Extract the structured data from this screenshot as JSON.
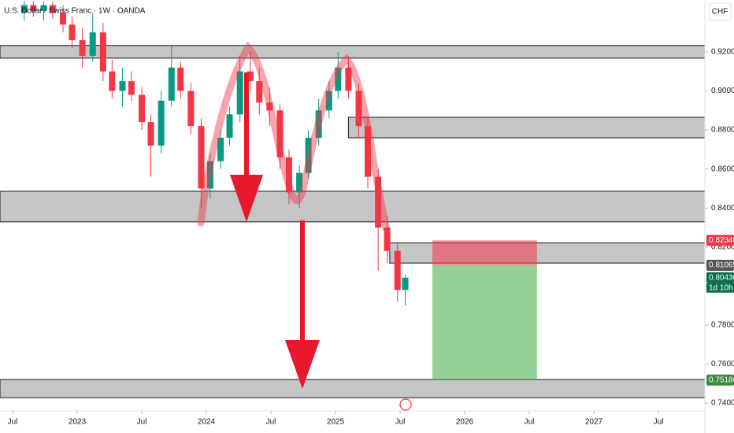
{
  "chart_data": {
    "type": "candlestick",
    "title": "U.S. Dollar / Swiss Franc · 1W · OANDA",
    "currency": "CHF",
    "up_color": "#089981",
    "down_color": "#f23645",
    "x": [
      2022.59,
      2022.66,
      2022.74,
      2022.81,
      2022.89,
      2022.96,
      2023.04,
      2023.12,
      2023.2,
      2023.27,
      2023.35,
      2023.42,
      2023.5,
      2023.57,
      2023.65,
      2023.73,
      2023.8,
      2023.88,
      2023.96,
      2024.03,
      2024.11,
      2024.18,
      2024.26,
      2024.34,
      2024.41,
      2024.49,
      2024.57,
      2024.64,
      2024.72,
      2024.79,
      2024.87,
      2024.95,
      2025.02,
      2025.1,
      2025.18,
      2025.25,
      2025.33,
      2025.4,
      2025.48,
      2025.54
    ],
    "ohlc": [
      [
        0.94,
        0.946,
        0.936,
        0.944
      ],
      [
        0.944,
        0.946,
        0.938,
        0.941
      ],
      [
        0.941,
        0.946,
        0.936,
        0.944
      ],
      [
        0.944,
        0.946,
        0.937,
        0.94
      ],
      [
        0.94,
        0.944,
        0.93,
        0.934
      ],
      [
        0.934,
        0.938,
        0.922,
        0.926
      ],
      [
        0.926,
        0.932,
        0.912,
        0.918
      ],
      [
        0.918,
        0.94,
        0.915,
        0.93
      ],
      [
        0.93,
        0.935,
        0.905,
        0.91
      ],
      [
        0.91,
        0.916,
        0.896,
        0.9
      ],
      [
        0.9,
        0.912,
        0.892,
        0.905
      ],
      [
        0.905,
        0.91,
        0.895,
        0.898
      ],
      [
        0.898,
        0.902,
        0.88,
        0.884
      ],
      [
        0.884,
        0.888,
        0.856,
        0.872
      ],
      [
        0.872,
        0.9,
        0.868,
        0.895
      ],
      [
        0.895,
        0.923,
        0.892,
        0.912
      ],
      [
        0.912,
        0.915,
        0.896,
        0.9
      ],
      [
        0.9,
        0.904,
        0.878,
        0.882
      ],
      [
        0.882,
        0.886,
        0.84,
        0.85
      ],
      [
        0.85,
        0.868,
        0.845,
        0.864
      ],
      [
        0.864,
        0.88,
        0.86,
        0.876
      ],
      [
        0.876,
        0.892,
        0.872,
        0.888
      ],
      [
        0.888,
        0.918,
        0.884,
        0.91
      ],
      [
        0.91,
        0.92,
        0.9,
        0.905
      ],
      [
        0.905,
        0.912,
        0.888,
        0.894
      ],
      [
        0.894,
        0.902,
        0.882,
        0.89
      ],
      [
        0.89,
        0.893,
        0.86,
        0.866
      ],
      [
        0.866,
        0.87,
        0.842,
        0.848
      ],
      [
        0.848,
        0.862,
        0.84,
        0.858
      ],
      [
        0.858,
        0.88,
        0.855,
        0.876
      ],
      [
        0.876,
        0.896,
        0.872,
        0.89
      ],
      [
        0.89,
        0.905,
        0.886,
        0.9
      ],
      [
        0.9,
        0.92,
        0.896,
        0.912
      ],
      [
        0.912,
        0.918,
        0.896,
        0.9
      ],
      [
        0.9,
        0.904,
        0.876,
        0.882
      ],
      [
        0.882,
        0.886,
        0.85,
        0.856
      ],
      [
        0.856,
        0.86,
        0.808,
        0.83
      ],
      [
        0.83,
        0.836,
        0.812,
        0.818
      ],
      [
        0.818,
        0.822,
        0.792,
        0.798
      ],
      [
        0.798,
        0.806,
        0.79,
        0.8043
      ]
    ],
    "xlim": [
      2022.402,
      2027.86
    ],
    "ylim": [
      0.736,
      0.9466
    ],
    "xticks": [
      {
        "value": 2022.5,
        "label": "Jul"
      },
      2023,
      {
        "value": 2023.5,
        "label": "Jul"
      },
      2024,
      {
        "value": 2024.5,
        "label": "Jul"
      },
      2025,
      {
        "value": 2025.5,
        "label": "Jul"
      },
      2026,
      {
        "value": 2026.5,
        "label": "Jul"
      },
      2027,
      {
        "value": 2027.5,
        "label": "Jul"
      }
    ],
    "yticks": [
      {
        "value": 0.74,
        "label": "0.74000"
      },
      {
        "value": 0.76,
        "label": "0.76000"
      },
      {
        "value": 0.78,
        "label": "0.78000"
      },
      {
        "value": 0.8,
        "label": "0.80000"
      },
      {
        "value": 0.82,
        "label": "0.82000"
      },
      {
        "value": 0.84,
        "label": "0.84000"
      },
      {
        "value": 0.86,
        "label": "0.86000"
      },
      {
        "value": 0.88,
        "label": "0.88000"
      },
      {
        "value": 0.9,
        "label": "0.90000"
      },
      {
        "value": 0.92,
        "label": "0.92000"
      }
    ],
    "price_badges": [
      {
        "value": 0.8234,
        "label": "0.82340",
        "color": "#f23645"
      },
      {
        "value": 0.81065,
        "label": "0.81065",
        "color": "#555555"
      },
      {
        "value": 0.8043,
        "label": "0.80430",
        "color": "#0b6e4f"
      },
      {
        "value": 0.75186,
        "label": "0.75186",
        "color": "#3d8b3d"
      }
    ],
    "countdown": "1d 10h",
    "zones": [
      {
        "x": [
          2022.402,
          2027.86
        ],
        "y": [
          0.9168,
          0.9233
        ]
      },
      {
        "x": [
          2025.1,
          2027.86
        ],
        "y": [
          0.876,
          0.8865
        ]
      },
      {
        "x": [
          2022.402,
          2027.86
        ],
        "y": [
          0.8329,
          0.8486
        ]
      },
      {
        "x": [
          2025.42,
          2027.86
        ],
        "y": [
          0.8118,
          0.8221
        ]
      },
      {
        "x": [
          2022.402,
          2027.86
        ],
        "y": [
          0.7428,
          0.7521
        ]
      }
    ],
    "position": {
      "x": [
        2025.75,
        2026.56
      ],
      "stop": 0.8234,
      "entry": 0.81065,
      "target": 0.75186
    }
  }
}
